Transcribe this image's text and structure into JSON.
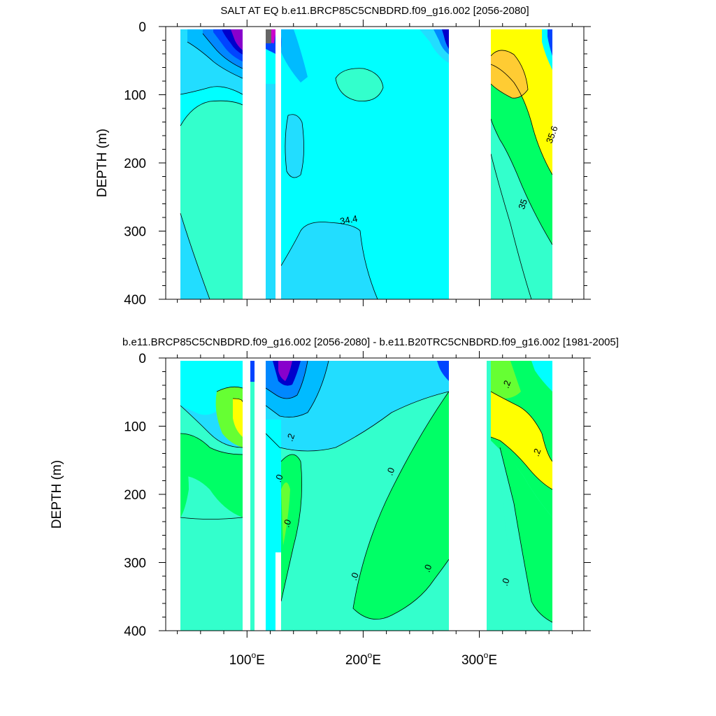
{
  "chart_data": [
    {
      "type": "contour",
      "title": "SALT AT EQ b.e11.BRCP85C5CNBDRD.f09_g16.002 [2056-2080]",
      "xlabel": "",
      "ylabel": "DEPTH (m)",
      "xlim": [
        30,
        390
      ],
      "ylim": [
        400,
        0
      ],
      "y_ticks": [
        0,
        100,
        200,
        300,
        400
      ],
      "y_tick_labels": [
        "0",
        "100",
        "200",
        "300",
        "400"
      ],
      "x_ticks": [
        100,
        200,
        300
      ],
      "x_tick_labels": [
        "",
        "",
        ""
      ],
      "data_extent_x": [
        43,
        368
      ],
      "land_gaps_x": [
        [
          98,
          117
        ],
        [
          278,
          315
        ]
      ],
      "contour_labels": [
        {
          "text": "34.4",
          "x": 188,
          "y": 288
        },
        {
          "text": "35.6",
          "x": 365,
          "y": 160
        },
        {
          "text": "35",
          "x": 340,
          "y": 262
        }
      ]
    },
    {
      "type": "contour",
      "title": "b.e11.BRCP85C5CNBDRD.f09_g16.002 [2056-2080] - b.e11.B20TRC5CNBDRD.f09_g16.002 [1981-2005]",
      "xlabel": "",
      "ylabel": "DEPTH (m)",
      "xlim": [
        30,
        390
      ],
      "ylim": [
        400,
        0
      ],
      "y_ticks": [
        0,
        100,
        200,
        300,
        400
      ],
      "y_tick_labels": [
        "0",
        "100",
        "200",
        "300",
        "400"
      ],
      "x_ticks": [
        100,
        200,
        300
      ],
      "x_tick_labels": [
        "100°E",
        "200°E",
        "300°E"
      ],
      "data_extent_x": [
        43,
        368
      ],
      "land_gaps_x": [
        [
          98,
          117
        ],
        [
          278,
          315
        ]
      ],
      "contour_labels": [
        {
          "text": ".2",
          "x": 326,
          "y": 40
        },
        {
          "text": ".2",
          "x": 140,
          "y": 118
        },
        {
          "text": ".2",
          "x": 352,
          "y": 140
        },
        {
          "text": ".0",
          "x": 130,
          "y": 178
        },
        {
          "text": ".0",
          "x": 226,
          "y": 168
        },
        {
          "text": ".0",
          "x": 137,
          "y": 244
        },
        {
          "text": ".0",
          "x": 195,
          "y": 322
        },
        {
          "text": ".0",
          "x": 258,
          "y": 310
        },
        {
          "text": ".0",
          "x": 325,
          "y": 330
        }
      ]
    }
  ]
}
